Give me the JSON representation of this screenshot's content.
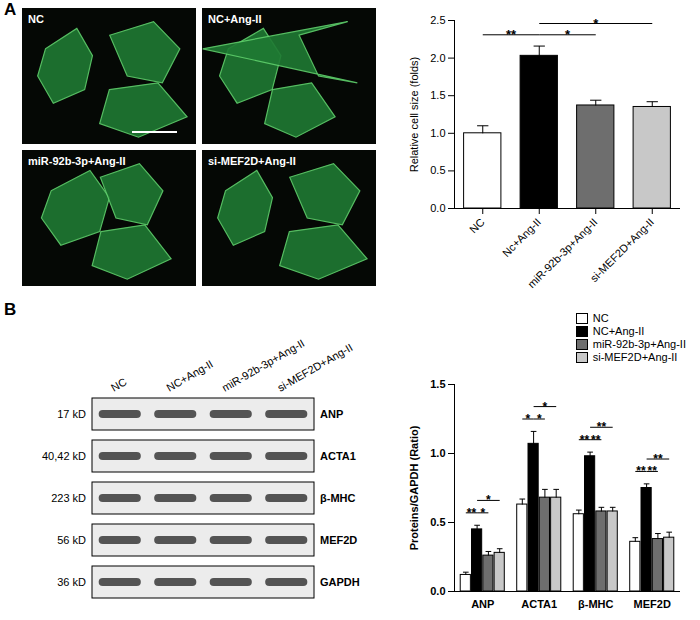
{
  "panel_labels": [
    "A",
    "B"
  ],
  "micrographs": {
    "labels": [
      "NC",
      "NC+Ang-II",
      "miR-92b-3p+Ang-II",
      "si-MEF2D+Ang-II"
    ]
  },
  "western_blot": {
    "lanes": [
      "NC",
      "NC+Ang-II",
      "miR-92b-3p+Ang-II",
      "si-MEF2D+Ang-II"
    ],
    "rows": [
      {
        "size": "17 kD",
        "protein": "ANP"
      },
      {
        "size": "40,42 kD",
        "protein": "ACTA1"
      },
      {
        "size": "223 kD",
        "protein": "β-MHC"
      },
      {
        "size": "56 kD",
        "protein": "MEF2D"
      },
      {
        "size": "36 kD",
        "protein": "GAPDH"
      }
    ]
  },
  "chart_data": [
    {
      "type": "bar",
      "y_label": "Relative cell size (folds)",
      "categories": [
        "NC",
        "Nc+Ang-II",
        "miR-92b-3p+Ang-II",
        "si-MEF2D+Ang-II"
      ],
      "values": [
        1.0,
        2.03,
        1.37,
        1.35
      ],
      "errors": [
        0.1,
        0.13,
        0.07,
        0.07
      ],
      "colors": [
        "#ffffff",
        "#000000",
        "#6e6e6e",
        "#c8c8c8"
      ],
      "ylim": [
        0,
        2.5
      ],
      "yticks": [
        {
          "value": 0,
          "label": "0.0"
        },
        0.5,
        {
          "value": 1,
          "label": "1.0"
        },
        1.5,
        {
          "value": 2,
          "label": "2.0"
        },
        2.5
      ],
      "significance": [
        {
          "from": 0,
          "to": 1,
          "label": "**"
        },
        {
          "from": 1,
          "to": 2,
          "label": "*"
        },
        {
          "from": 1,
          "to": 3,
          "label": "*"
        }
      ]
    },
    {
      "type": "bar",
      "y_label": "Proteins/GAPDH (Ratio)",
      "categories": [
        "ANP",
        "ACTA1",
        "β-MHC",
        "MEF2D"
      ],
      "series": [
        {
          "name": "NC",
          "color": "#ffffff",
          "values": [
            0.12,
            0.63,
            0.56,
            0.36
          ],
          "errors": [
            0.02,
            0.04,
            0.03,
            0.03
          ]
        },
        {
          "name": "NC+Ang-II",
          "color": "#000000",
          "values": [
            0.45,
            1.07,
            0.98,
            0.75
          ],
          "errors": [
            0.03,
            0.09,
            0.03,
            0.03
          ]
        },
        {
          "name": "miR-92b-3p+Ang-II",
          "color": "#6e6e6e",
          "values": [
            0.26,
            0.68,
            0.58,
            0.38
          ],
          "errors": [
            0.03,
            0.06,
            0.03,
            0.04
          ]
        },
        {
          "name": "si-MEF2D+Ang-II",
          "color": "#c8c8c8",
          "values": [
            0.28,
            0.68,
            0.58,
            0.39
          ],
          "errors": [
            0.03,
            0.06,
            0.03,
            0.04
          ]
        }
      ],
      "ylim": [
        0,
        1.5
      ],
      "yticks": [
        {
          "value": 0,
          "label": "0.0"
        },
        0.5,
        {
          "value": 1,
          "label": "1.0"
        },
        1.5
      ],
      "legend": "top-right",
      "significance": [
        {
          "category": "ANP",
          "from": 0,
          "to": 1,
          "label": "**"
        },
        {
          "category": "ANP",
          "from": 1,
          "to": 2,
          "label": "*"
        },
        {
          "category": "ANP",
          "from": 1,
          "to": 3,
          "label": "*"
        },
        {
          "category": "ACTA1",
          "from": 0,
          "to": 1,
          "label": "*"
        },
        {
          "category": "ACTA1",
          "from": 1,
          "to": 2,
          "label": "*"
        },
        {
          "category": "ACTA1",
          "from": 1,
          "to": 3,
          "label": "*"
        },
        {
          "category": "β-MHC",
          "from": 0,
          "to": 1,
          "label": "**"
        },
        {
          "category": "β-MHC",
          "from": 1,
          "to": 2,
          "label": "**"
        },
        {
          "category": "β-MHC",
          "from": 1,
          "to": 3,
          "label": "**"
        },
        {
          "category": "MEF2D",
          "from": 0,
          "to": 1,
          "label": "**"
        },
        {
          "category": "MEF2D",
          "from": 1,
          "to": 2,
          "label": "**"
        },
        {
          "category": "MEF2D",
          "from": 1,
          "to": 3,
          "label": "**"
        }
      ]
    }
  ]
}
